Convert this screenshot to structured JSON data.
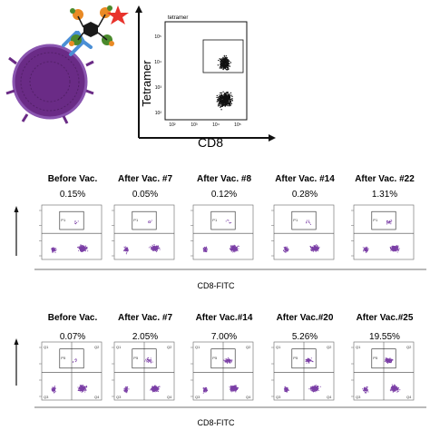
{
  "top_panel": {
    "gate_label": "tetramer",
    "y_axis_label": "Tetramer",
    "x_axis_label": "CD8",
    "tick_labels": [
      "10²",
      "10³",
      "10⁴",
      "10⁵"
    ]
  },
  "row1": {
    "columns": [
      {
        "header": "Before Vac.",
        "percent": "0.15%"
      },
      {
        "header": "After Vac. #7",
        "percent": "0.05%"
      },
      {
        "header": "After  Vac. #8",
        "percent": "0.12%"
      },
      {
        "header": "After  Vac. #14",
        "percent": "0.28%"
      },
      {
        "header": "After  Vac. #22",
        "percent": "1.31%"
      }
    ],
    "x_axis_label": "CD8-FITC",
    "gate_label": "P1"
  },
  "row2": {
    "columns": [
      {
        "header": "Before Vac.",
        "percent": "0.07%"
      },
      {
        "header": "After Vac. #7",
        "percent": "2.05%"
      },
      {
        "header": "After Vac.#14",
        "percent": "7.00%"
      },
      {
        "header": "After  Vac.#20",
        "percent": "5.26%"
      },
      {
        "header": "After  Vac.#25",
        "percent": "19.55%"
      }
    ],
    "x_axis_label": "CD8-FITC",
    "gate_label": "P5",
    "quadrant_labels": [
      "Q1",
      "Q2",
      "Q3",
      "Q4"
    ]
  },
  "colors": {
    "purple_dots": "#7b3fa6",
    "cell_purple": "#6a2b86",
    "star_red": "#e8332c",
    "antibody_blue": "#4b8fd6",
    "hexagon_dark": "#1a1a1a",
    "orange": "#e98a25",
    "green": "#4a8a2c"
  }
}
